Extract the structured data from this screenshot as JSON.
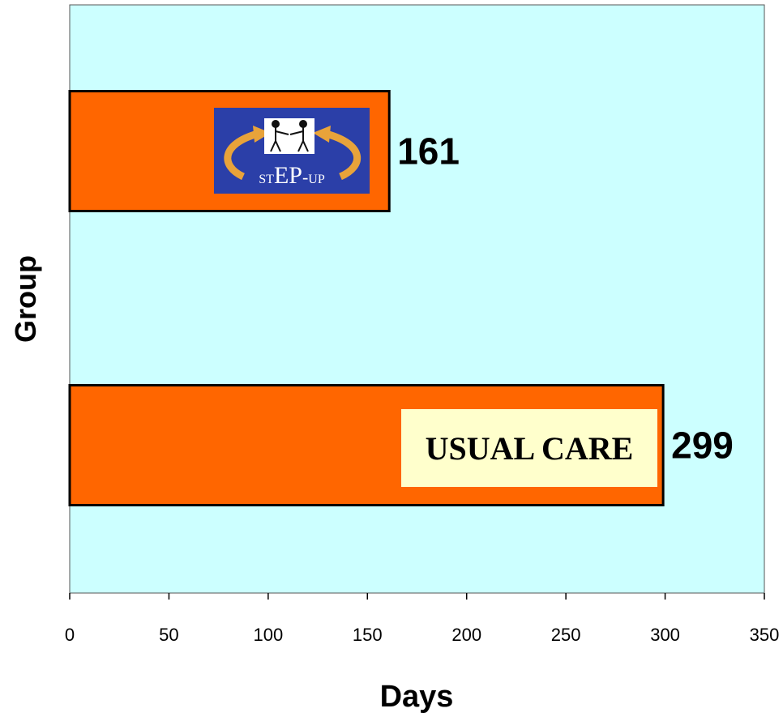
{
  "chart_data": {
    "type": "bar",
    "orientation": "horizontal",
    "categories": [
      "STEP-UP",
      "USUAL CARE"
    ],
    "values": [
      161,
      299
    ],
    "data_labels": [
      "161",
      "299"
    ],
    "xlabel": "Days",
    "ylabel": "Group",
    "xlim": [
      0,
      350
    ],
    "x_ticks": [
      0,
      50,
      100,
      150,
      200,
      250,
      300,
      350
    ],
    "grid": false,
    "legend": "none",
    "colors": {
      "plot_background": "#ccffff",
      "bar_fill": "#ff6600",
      "bar_border": "#000000",
      "logo_background": "#2b3fa8",
      "logo_arrows": "#e8a33a",
      "usual_care_box": "#ffffcc"
    },
    "category_boxes": [
      {
        "kind": "logo",
        "logo_text": "STEP-UP"
      },
      {
        "kind": "label",
        "text": "USUAL CARE"
      }
    ]
  }
}
